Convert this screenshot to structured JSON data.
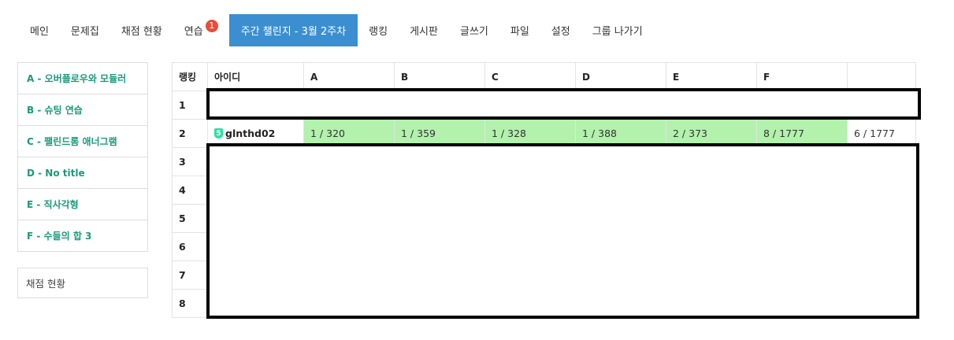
{
  "nav": {
    "items": [
      {
        "label": "메인"
      },
      {
        "label": "문제집"
      },
      {
        "label": "채점 현황"
      },
      {
        "label": "연습",
        "badge": "1"
      },
      {
        "label": "주간 챌린지 - 3월 2주차",
        "active": true
      },
      {
        "label": "랭킹"
      },
      {
        "label": "게시판"
      },
      {
        "label": "글쓰기"
      },
      {
        "label": "파일"
      },
      {
        "label": "설정"
      },
      {
        "label": "그룹 나가기"
      }
    ]
  },
  "sidebar": {
    "problems": [
      "A - 오버플로우와 모듈러",
      "B - 슈팅 연습",
      "C - 팰린드롬 애너그램",
      "D - No title",
      "E - 직사각형",
      "F - 수들의 합 3"
    ],
    "status_link": "채점 현황"
  },
  "table": {
    "headers": [
      "랭킹",
      "아이디",
      "A",
      "B",
      "C",
      "D",
      "E",
      "F",
      ""
    ],
    "rows": [
      {
        "rank": "1",
        "redacted": true
      },
      {
        "rank": "2",
        "tier": "5",
        "user": "glnthd02",
        "cells": [
          "1 / 320",
          "1 / 359",
          "1 / 328",
          "1 / 388",
          "2 / 373",
          "8 / 1777"
        ],
        "total": "6 / 1777"
      },
      {
        "rank": "3"
      },
      {
        "rank": "4"
      },
      {
        "rank": "5"
      },
      {
        "rank": "6"
      },
      {
        "rank": "7"
      },
      {
        "rank": "8"
      }
    ]
  },
  "colors": {
    "accent": "#3b8fd0",
    "solved": "#b2f2ac",
    "problem_link": "#1a9a7a",
    "badge": "#e74c3c"
  }
}
